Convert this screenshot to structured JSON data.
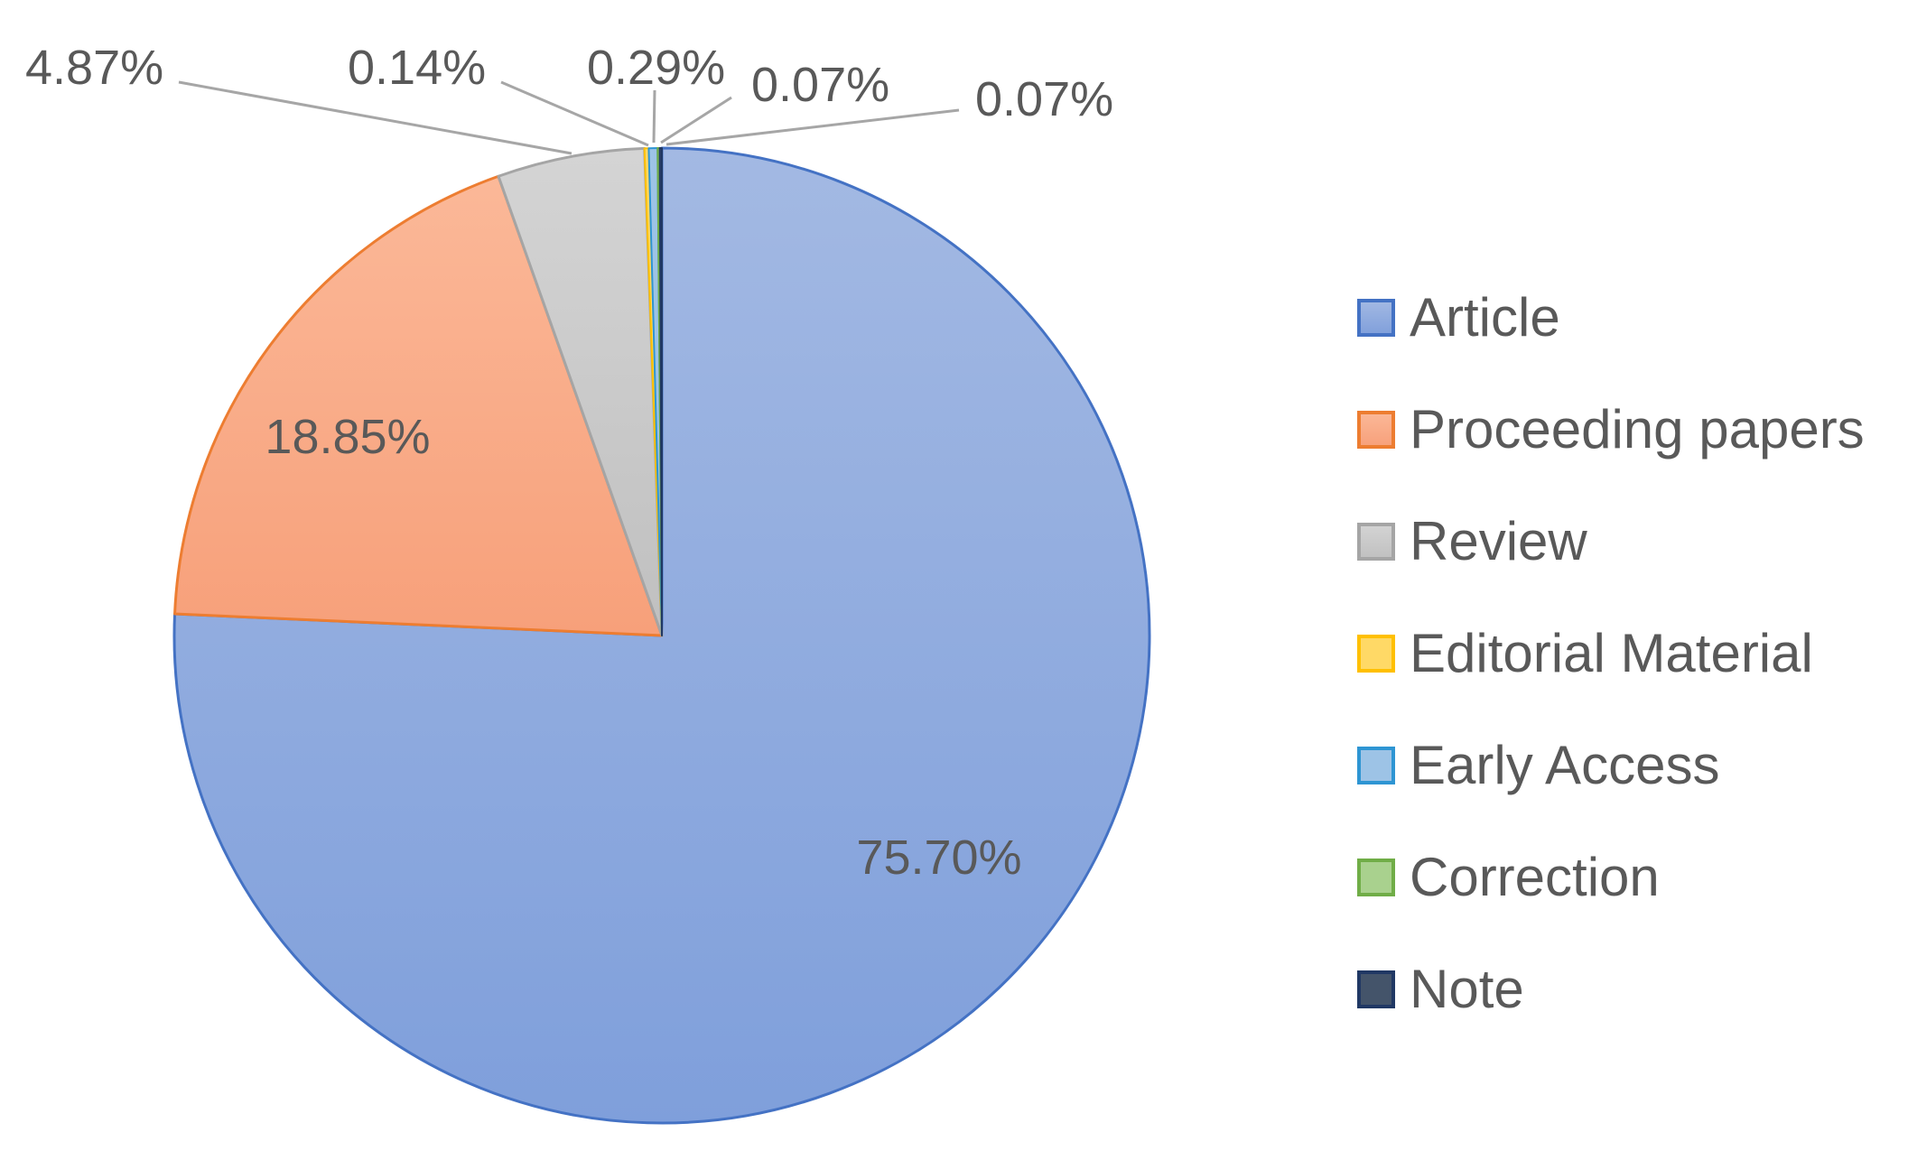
{
  "chart_data": {
    "type": "pie",
    "title": "",
    "legend_position": "right",
    "series": [
      {
        "name": "Article",
        "value": 75.7,
        "label": "75.70%",
        "fill": "#8eaadb",
        "stroke": "#4472c4"
      },
      {
        "name": "Proceeding papers",
        "value": 18.85,
        "label": "18.85%",
        "fill": "#f8ab89",
        "stroke": "#ed7d31"
      },
      {
        "name": "Review",
        "value": 4.87,
        "label": "4.87%",
        "fill": "#c9c9c9",
        "stroke": "#a5a5a5"
      },
      {
        "name": "Editorial Material",
        "value": 0.14,
        "label": "0.14%",
        "fill": "#ffd966",
        "stroke": "#ffc000"
      },
      {
        "name": "Early Access",
        "value": 0.29,
        "label": "0.29%",
        "fill": "#9dc3e6",
        "stroke": "#2e95d3"
      },
      {
        "name": "Correction",
        "value": 0.07,
        "label": "0.07%",
        "fill": "#a9d18e",
        "stroke": "#70ad47"
      },
      {
        "name": "Note",
        "value": 0.07,
        "label": "0.07%",
        "fill": "#44546a",
        "stroke": "#203864"
      }
    ]
  }
}
